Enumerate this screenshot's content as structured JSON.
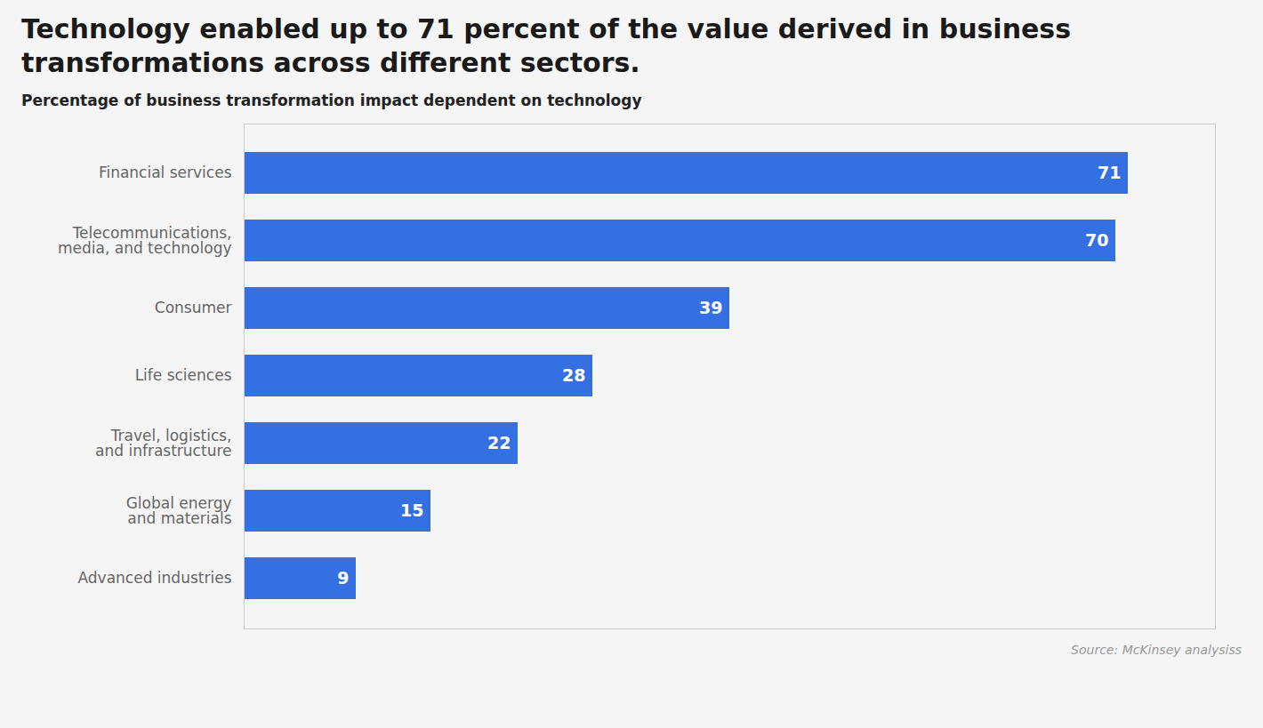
{
  "chart_data": {
    "type": "bar",
    "orientation": "horizontal",
    "title": "Technology enabled up to 71 percent of the value derived in business\ntransformations across different sectors.",
    "subtitle": "Percentage of business transformation impact dependent on technology",
    "source": "Source: McKinsey analysiss",
    "categories": [
      "Financial services",
      "Telecommunications,\nmedia, and technology",
      "Consumer",
      "Life sciences",
      "Travel, logistics,\nand infrastructure",
      "Global energy\nand materials",
      "Advanced industries"
    ],
    "values": [
      71,
      70,
      39,
      28,
      22,
      15,
      9
    ],
    "color": "#3570E2",
    "xlim": [
      0,
      78
    ],
    "xticks": [],
    "grid": false,
    "data_labels": true,
    "tick_labels": "y"
  }
}
